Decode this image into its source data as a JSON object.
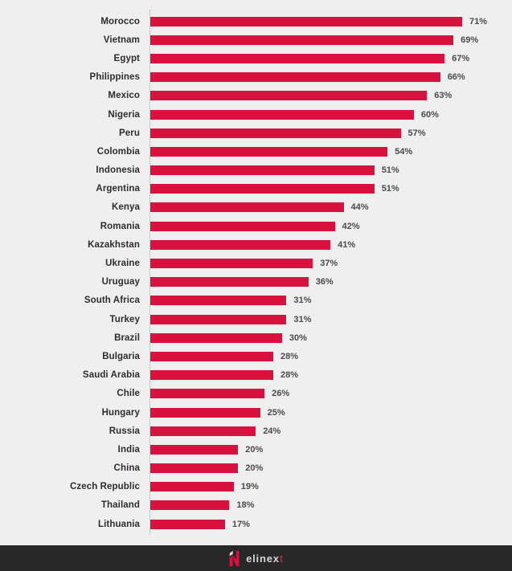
{
  "chart_data": {
    "type": "bar",
    "orientation": "horizontal",
    "title": "",
    "xlabel": "",
    "ylabel": "",
    "grid": false,
    "legend": false,
    "value_suffix": "%",
    "xlim": [
      0,
      75
    ],
    "categories": [
      "Morocco",
      "Vietnam",
      "Egypt",
      "Philippines",
      "Mexico",
      "Nigeria",
      "Peru",
      "Colombia",
      "Indonesia",
      "Argentina",
      "Kenya",
      "Romania",
      "Kazakhstan",
      "Ukraine",
      "Uruguay",
      "South Africa",
      "Turkey",
      "Brazil",
      "Bulgaria",
      "Saudi Arabia",
      "Chile",
      "Hungary",
      "Russia",
      "India",
      "China",
      "Czech Republic",
      "Thailand",
      "Lithuania"
    ],
    "values": [
      71,
      69,
      67,
      66,
      63,
      60,
      57,
      54,
      51,
      51,
      44,
      42,
      41,
      37,
      36,
      31,
      31,
      30,
      28,
      28,
      26,
      25,
      24,
      20,
      20,
      19,
      18,
      17
    ],
    "bar_color": "#d8123f",
    "category_label_color": "#2d2d2d",
    "value_label_color": "#4a4a4a",
    "background_color": "#f0efef",
    "axis_line_style": "dotted"
  },
  "footer": {
    "background_color": "#282828",
    "logo_icon": "elinext-n-mark",
    "brand_main": "elinex",
    "brand_accent": "t"
  }
}
